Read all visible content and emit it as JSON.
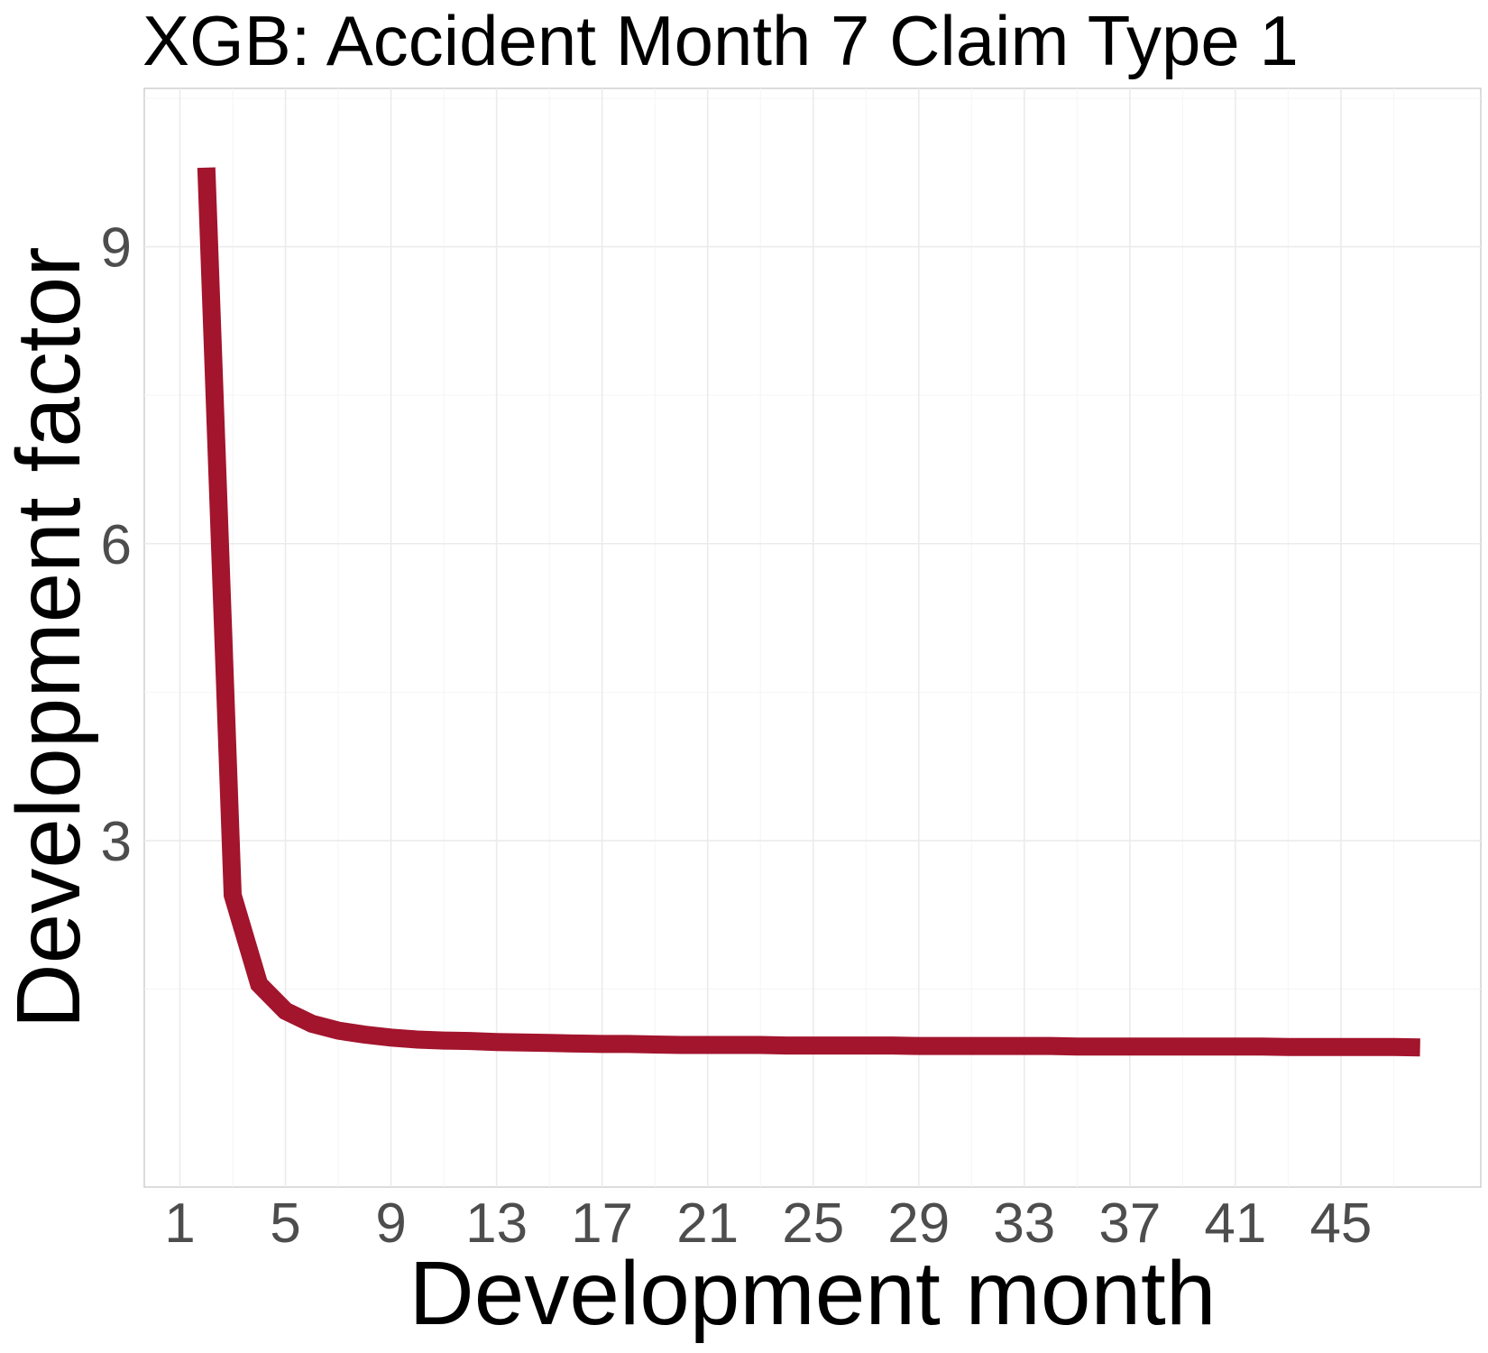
{
  "chart_data": {
    "type": "line",
    "title": "XGB: Accident Month 7 Claim Type 1",
    "xlabel": "Development month",
    "ylabel": "Development factor",
    "xlim": [
      -0.35,
      50.3
    ],
    "ylim": [
      -0.5,
      10.6
    ],
    "x_ticks": [
      1,
      5,
      9,
      13,
      17,
      21,
      25,
      29,
      33,
      37,
      41,
      45
    ],
    "y_ticks": [
      3,
      6,
      9
    ],
    "grid": true,
    "legend": "none",
    "series": [
      {
        "color": "#a3142d",
        "x": [
          2,
          3,
          4,
          5,
          6,
          7,
          8,
          9,
          10,
          11,
          12,
          13,
          14,
          15,
          16,
          17,
          18,
          19,
          20,
          21,
          22,
          23,
          24,
          25,
          26,
          27,
          28,
          29,
          30,
          31,
          32,
          33,
          34,
          35,
          36,
          37,
          38,
          39,
          40,
          41,
          42,
          43,
          44,
          45,
          46,
          47,
          48
        ],
        "y": [
          9.8,
          2.45,
          1.55,
          1.28,
          1.15,
          1.08,
          1.04,
          1.01,
          0.99,
          0.98,
          0.975,
          0.965,
          0.96,
          0.955,
          0.95,
          0.945,
          0.945,
          0.94,
          0.935,
          0.935,
          0.935,
          0.935,
          0.93,
          0.93,
          0.93,
          0.93,
          0.93,
          0.925,
          0.925,
          0.925,
          0.925,
          0.925,
          0.925,
          0.92,
          0.92,
          0.92,
          0.92,
          0.92,
          0.92,
          0.92,
          0.92,
          0.915,
          0.915,
          0.915,
          0.915,
          0.915,
          0.91
        ]
      }
    ]
  }
}
